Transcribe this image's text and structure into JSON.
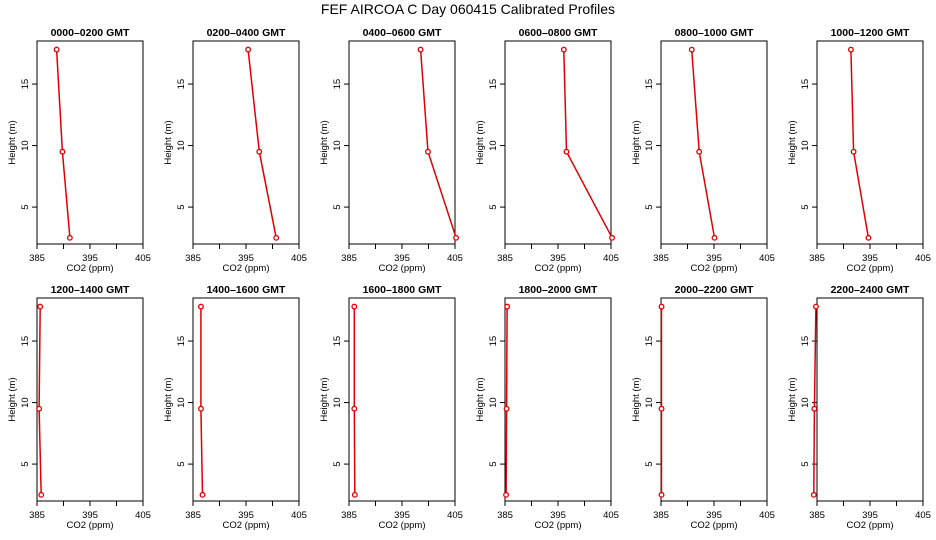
{
  "title": "FEF AIRCOA C  Day 060415  Calibrated Profiles",
  "colors": {
    "profile": "#e00000",
    "axes": "#000000",
    "background": "#ffffff"
  },
  "chart_data": {
    "type": "line",
    "xlabel": "CO2 (ppm)",
    "ylabel": "Height (m)",
    "xlim": [
      385,
      405
    ],
    "ylim": [
      2,
      18.5
    ],
    "xticks": [
      385,
      390,
      395,
      400,
      405
    ],
    "xtick_labels": [
      "385",
      "",
      "395",
      "",
      "405"
    ],
    "yticks": [
      5,
      10,
      15
    ],
    "yticks_label_list": [
      "5",
      "10",
      "15"
    ],
    "grid": false,
    "panels": [
      {
        "title": "0000–0200 GMT",
        "x": [
          391.2,
          389.8,
          388.7
        ],
        "y": [
          2.5,
          9.5,
          17.8
        ]
      },
      {
        "title": "0200–0400 GMT",
        "x": [
          400.7,
          397.5,
          395.4
        ],
        "y": [
          2.5,
          9.5,
          17.8
        ]
      },
      {
        "title": "0400–0600 GMT",
        "x": [
          405.2,
          399.9,
          398.5
        ],
        "y": [
          2.5,
          9.5,
          17.8
        ]
      },
      {
        "title": "0600–0800 GMT",
        "x": [
          405.2,
          396.6,
          396.1
        ],
        "y": [
          2.5,
          9.5,
          17.8
        ]
      },
      {
        "title": "0800–1000 GMT",
        "x": [
          395.1,
          392.2,
          390.8
        ],
        "y": [
          2.5,
          9.5,
          17.8
        ]
      },
      {
        "title": "1000–1200 GMT",
        "x": [
          394.7,
          391.9,
          391.4
        ],
        "y": [
          2.5,
          9.5,
          17.8
        ]
      },
      {
        "title": "1200–1400 GMT",
        "x": [
          385.8,
          385.4,
          385.6
        ],
        "y": [
          2.5,
          9.5,
          17.8
        ]
      },
      {
        "title": "1400–1600 GMT",
        "x": [
          386.8,
          386.5,
          386.5
        ],
        "y": [
          2.5,
          9.5,
          17.8
        ]
      },
      {
        "title": "1600–1800 GMT",
        "x": [
          386.1,
          386.0,
          386.0
        ],
        "y": [
          2.5,
          9.5,
          17.8
        ]
      },
      {
        "title": "1800–2000 GMT",
        "x": [
          385.2,
          385.3,
          385.4
        ],
        "y": [
          2.5,
          9.5,
          17.8
        ]
      },
      {
        "title": "2000–2200 GMT",
        "x": [
          385.1,
          385.1,
          385.1
        ],
        "y": [
          2.5,
          9.5,
          17.8
        ]
      },
      {
        "title": "2200–2400 GMT",
        "x": [
          384.4,
          384.5,
          384.8
        ],
        "y": [
          2.5,
          9.5,
          17.8
        ]
      }
    ]
  }
}
